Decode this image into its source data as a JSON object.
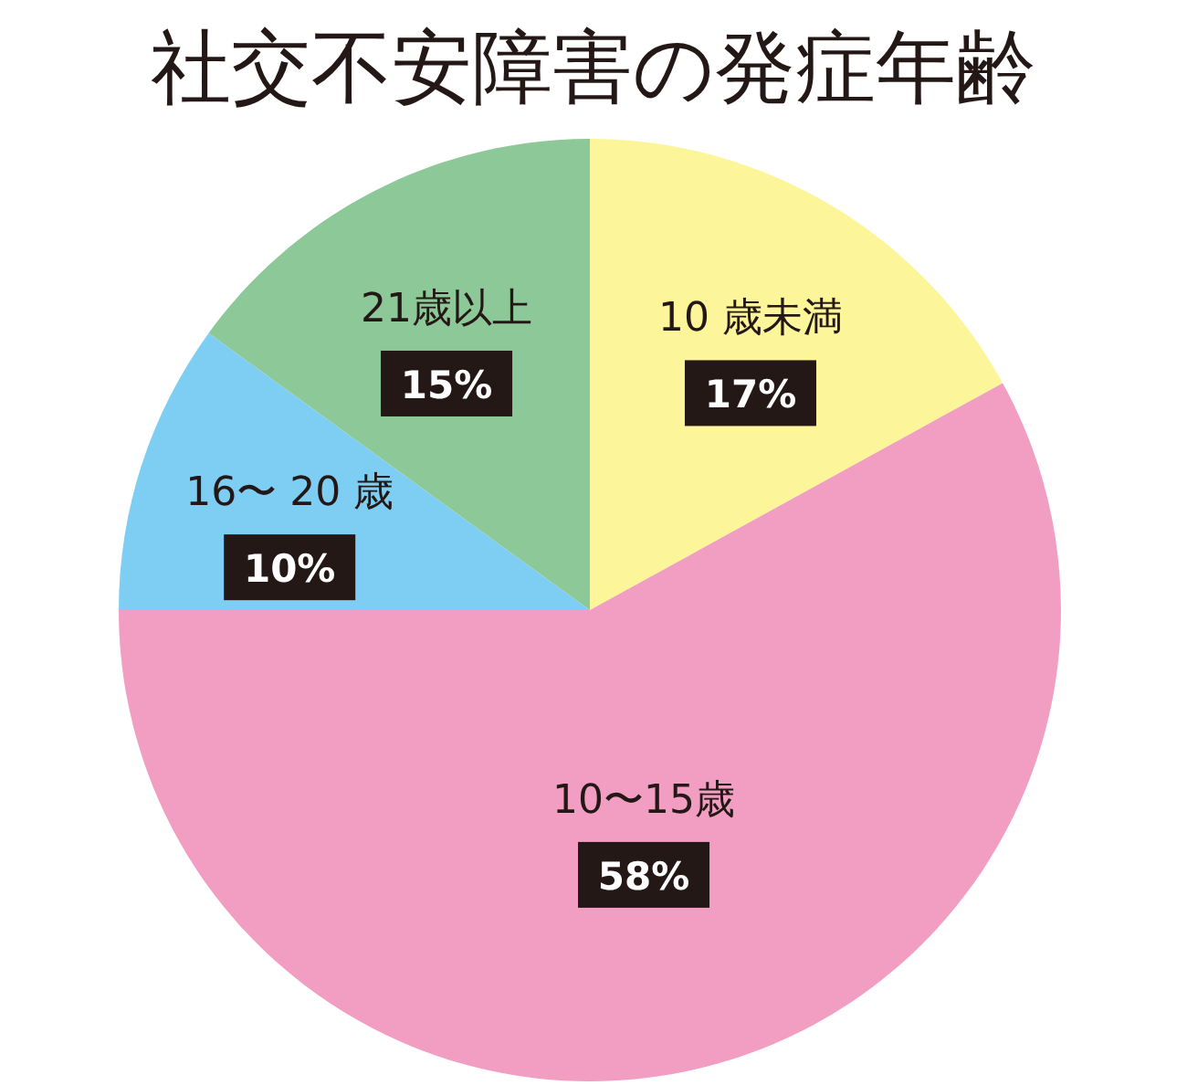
{
  "chart_data": {
    "type": "pie",
    "title": "社交不安障害の発症年齢",
    "categories": [
      "10 歳未満",
      "10〜15歳",
      "16〜 20 歳",
      "21歳以上"
    ],
    "values": [
      17,
      58,
      10,
      15
    ],
    "colors": [
      "#fdf59a",
      "#f19ec2",
      "#7ecef4",
      "#8dc898"
    ],
    "value_labels": [
      "17%",
      "58%",
      "10%",
      "15%"
    ]
  }
}
